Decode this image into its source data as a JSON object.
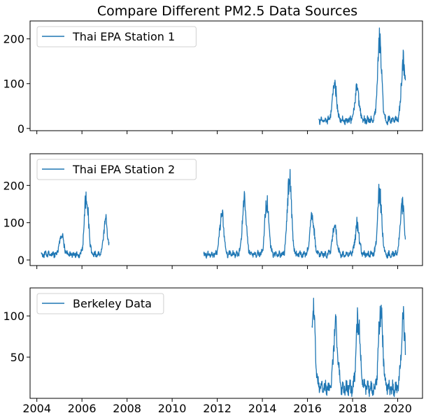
{
  "chart_data": [
    {
      "type": "line",
      "title": "Compare Different PM2.5 Data Sources",
      "xlabel": "",
      "ylabel": "",
      "xlim": [
        2003.7,
        2021.1
      ],
      "ylim": [
        -5,
        240
      ],
      "yticks": [
        0,
        100,
        200
      ],
      "grid": false,
      "legend_position": "top-left",
      "series": [
        {
          "name": "Thai EPA Station 1",
          "color": "#1f77b4",
          "start": 2016.5,
          "end": 2020.35,
          "baseline": 18,
          "peaks": [
            [
              2017.2,
              112
            ],
            [
              2018.2,
              104
            ],
            [
              2019.2,
              228
            ],
            [
              2020.25,
              175
            ]
          ]
        }
      ]
    },
    {
      "type": "line",
      "title": "",
      "xlabel": "",
      "ylabel": "",
      "xlim": [
        2003.7,
        2021.1
      ],
      "ylim": [
        -15,
        285
      ],
      "yticks": [
        0,
        100,
        200
      ],
      "grid": false,
      "legend_position": "top-left",
      "series": [
        {
          "name": "Thai EPA Station 2",
          "color": "#1f77b4",
          "segments": [
            [
              2004.2,
              2007.2
            ],
            [
              2011.4,
              2020.35
            ]
          ],
          "baseline": 15,
          "peaks": [
            [
              2005.1,
              78
            ],
            [
              2006.2,
              202
            ],
            [
              2007.05,
              120
            ],
            [
              2012.2,
              145
            ],
            [
              2013.2,
              188
            ],
            [
              2014.2,
              185
            ],
            [
              2015.2,
              268
            ],
            [
              2016.2,
              142
            ],
            [
              2017.2,
              108
            ],
            [
              2018.2,
              108
            ],
            [
              2019.2,
              210
            ],
            [
              2020.2,
              175
            ]
          ]
        }
      ]
    },
    {
      "type": "line",
      "title": "",
      "xlabel": "",
      "ylabel": "",
      "xlim": [
        2003.7,
        2021.1
      ],
      "ylim": [
        0,
        134
      ],
      "yticks": [
        50,
        100
      ],
      "xticks": [
        2004,
        2006,
        2008,
        2010,
        2012,
        2014,
        2016,
        2018,
        2020
      ],
      "grid": false,
      "legend_position": "top-left",
      "series": [
        {
          "name": "Berkeley Data",
          "color": "#1f77b4",
          "start": 2016.2,
          "end": 2020.35,
          "baseline": 12,
          "peaks": [
            [
              2016.25,
              125
            ],
            [
              2017.25,
              102
            ],
            [
              2018.25,
              112
            ],
            [
              2019.25,
              127
            ],
            [
              2020.25,
              113
            ]
          ]
        }
      ]
    }
  ]
}
